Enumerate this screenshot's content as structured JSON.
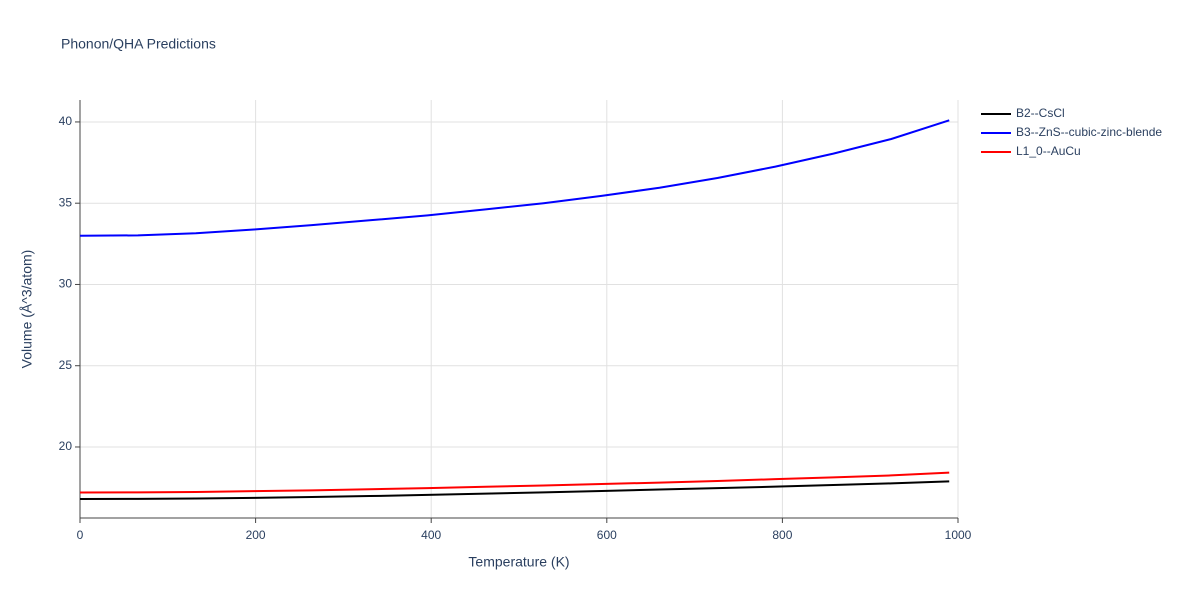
{
  "chart_data": {
    "type": "line",
    "title": "Phonon/QHA Predictions",
    "x_label": "Temperature (K)",
    "y_label": "Volume (Å^3/atom)",
    "x": [
      0,
      66,
      132,
      198,
      264,
      330,
      396,
      462,
      528,
      594,
      660,
      726,
      792,
      858,
      924,
      990
    ],
    "series": [
      {
        "name": "B2--CsCl",
        "color": "#000000",
        "values": [
          16.8,
          16.81,
          16.83,
          16.87,
          16.92,
          16.98,
          17.05,
          17.13,
          17.21,
          17.29,
          17.38,
          17.47,
          17.56,
          17.66,
          17.76,
          17.88
        ]
      },
      {
        "name": "B3--ZnS--cubic-zinc-blende",
        "color": "#0000ff",
        "values": [
          33.0,
          33.02,
          33.15,
          33.38,
          33.65,
          33.95,
          34.25,
          34.62,
          35.0,
          35.45,
          35.95,
          36.55,
          37.25,
          38.05,
          38.95,
          40.1
        ]
      },
      {
        "name": "L1_0--AuCu",
        "color": "#ff0000",
        "values": [
          17.2,
          17.21,
          17.23,
          17.28,
          17.33,
          17.4,
          17.47,
          17.55,
          17.63,
          17.72,
          17.81,
          17.91,
          18.02,
          18.13,
          18.25,
          18.42
        ]
      }
    ],
    "xlim": [
      0,
      1000
    ],
    "xticks": [
      0,
      200,
      400,
      600,
      800,
      1000
    ],
    "ylim": [
      15.63,
      41.35
    ],
    "yticks": [
      20,
      25,
      30,
      35,
      40
    ],
    "grid": true,
    "legend": "top-right"
  }
}
